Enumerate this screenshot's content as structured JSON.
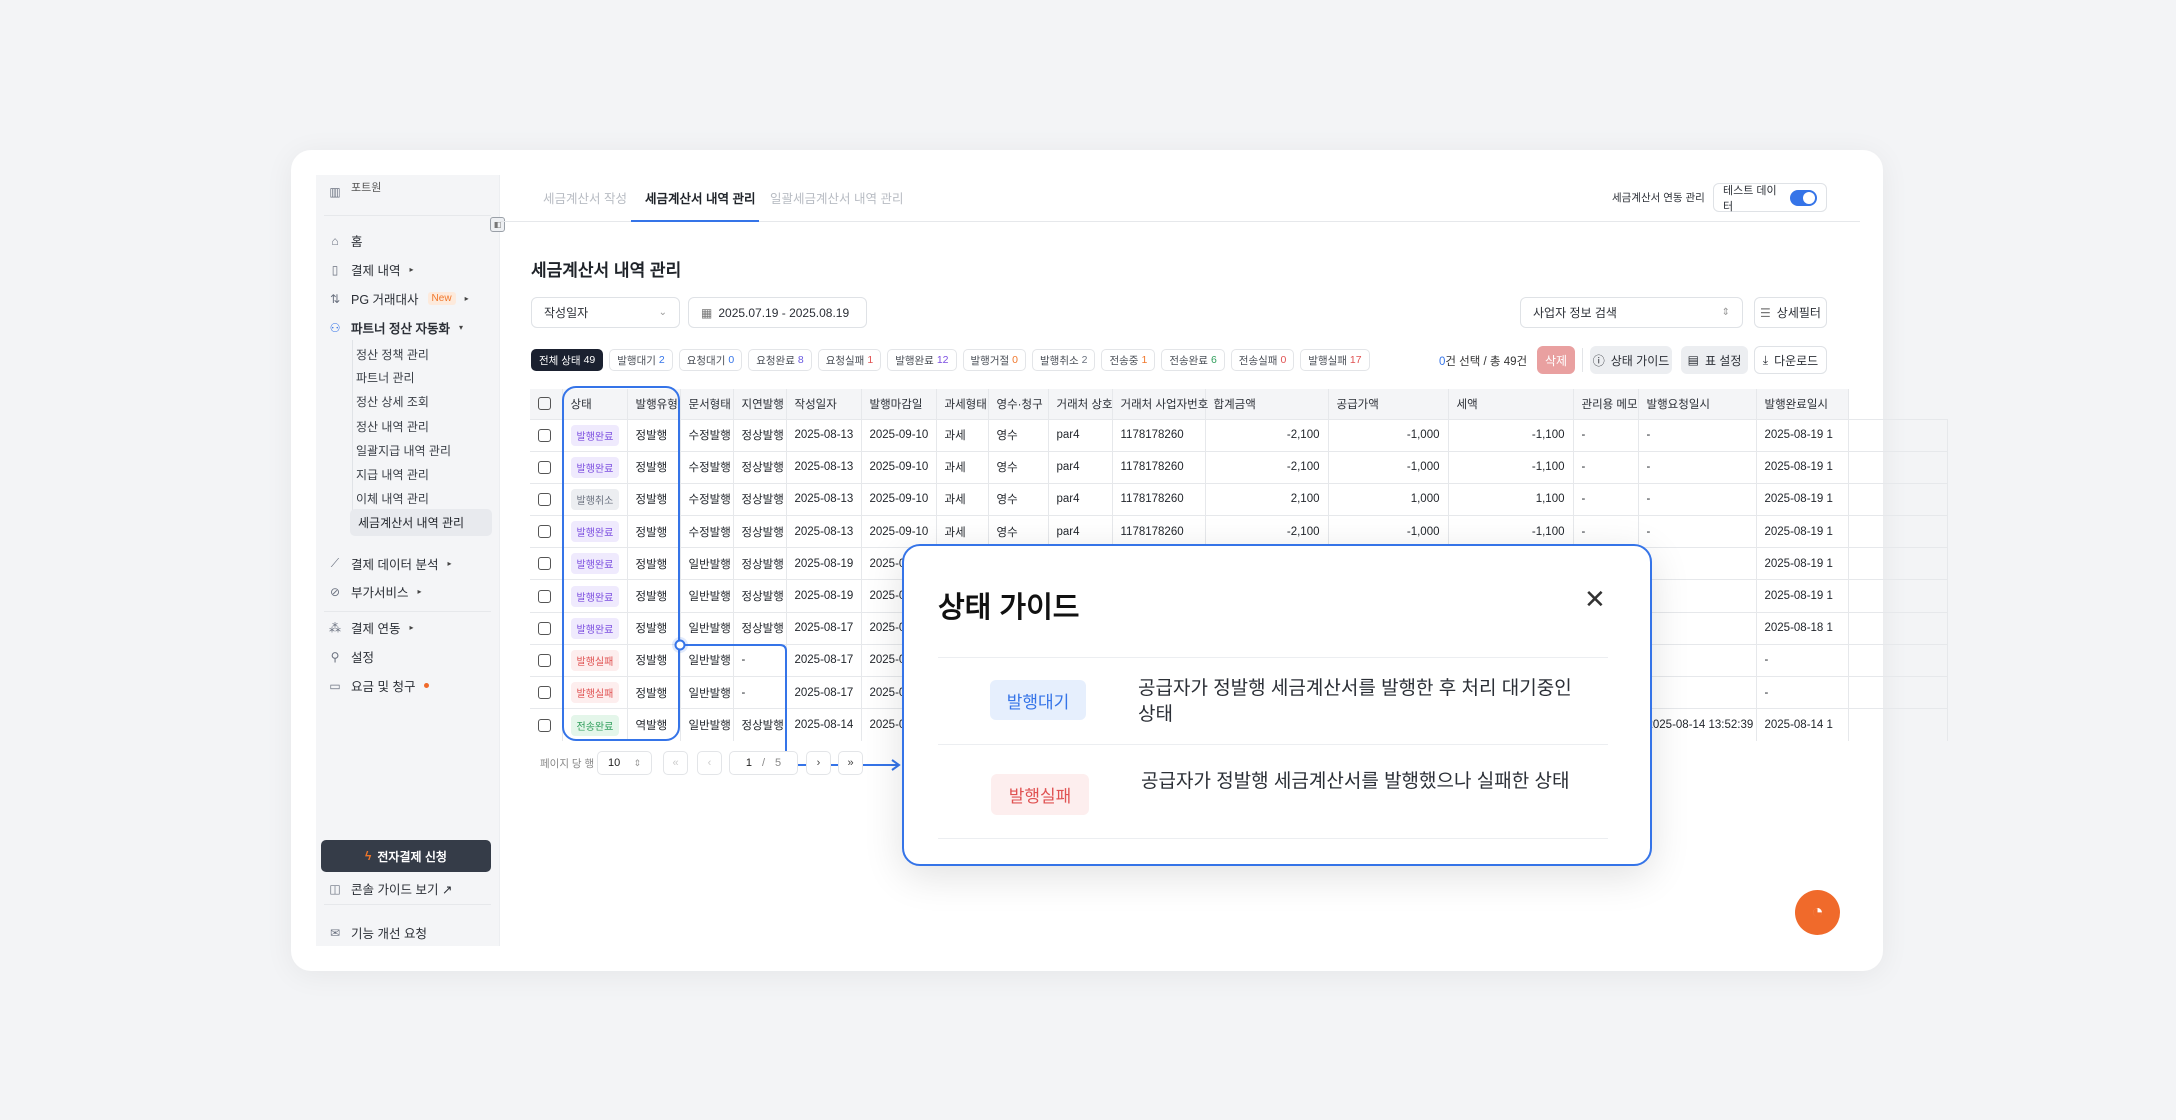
{
  "sidebar": {
    "org": "포트원",
    "items": [
      {
        "label": "홈",
        "icon": "home-icon"
      },
      {
        "label": "결제 내역",
        "icon": "clipboard-icon",
        "caret": "▸"
      },
      {
        "label": "PG 거래대사",
        "icon": "reconcile-icon",
        "badge": "New",
        "caret": "▸"
      },
      {
        "label": "파트너 정산 자동화",
        "icon": "users-icon",
        "caret": "▾"
      }
    ],
    "sub_items": [
      "정산 정책 관리",
      "파트너 관리",
      "정산 상세 조회",
      "정산 내역 관리",
      "일괄지급 내역 관리",
      "지급 내역 관리",
      "이체 내역 관리",
      "세금계산서 내역 관리"
    ],
    "items2": [
      {
        "label": "결제 데이터 분석",
        "icon": "chart-icon",
        "caret": "▸"
      },
      {
        "label": "부가서비스",
        "icon": "addon-icon",
        "caret": "▸"
      },
      {
        "label": "결제 연동",
        "icon": "integration-icon",
        "caret": "▸"
      },
      {
        "label": "설정",
        "icon": "settings-icon"
      },
      {
        "label": "요금 및 청구",
        "icon": "card-icon"
      }
    ],
    "apply_button": "전자결제 신청",
    "console_guide": "콘솔 가이드 보기 ↗",
    "feedback": "기능 개선 요청"
  },
  "tabs": [
    "세금계산서 작성",
    "세금계산서 내역 관리",
    "일괄세금계산서 내역 관리"
  ],
  "header": {
    "integration": "세금계산서 연동 관리",
    "test_data": "테스트 데이터",
    "test_data_on": true
  },
  "page_title": "세금계산서 내역 관리",
  "filters": {
    "date_type": "작성일자",
    "date_range": "2025.07.19 - 2025.08.19",
    "search": "사업자 정보 검색",
    "detail_filter": "상세필터"
  },
  "status_chips": [
    {
      "label": "전체 상태",
      "count": "49",
      "color": "#ffffff"
    },
    {
      "label": "발행대기",
      "count": "2",
      "color": "#3574e8"
    },
    {
      "label": "요청대기",
      "count": "0",
      "color": "#3574e8"
    },
    {
      "label": "요청완료",
      "count": "8",
      "color": "#6a5ae0"
    },
    {
      "label": "요청실패",
      "count": "1",
      "color": "#e05252"
    },
    {
      "label": "발행완료",
      "count": "12",
      "color": "#7b4de0"
    },
    {
      "label": "발행거절",
      "count": "0",
      "color": "#f0772b"
    },
    {
      "label": "발행취소",
      "count": "2",
      "color": "#6b7280"
    },
    {
      "label": "전송중",
      "count": "1",
      "color": "#f0772b"
    },
    {
      "label": "전송완료",
      "count": "6",
      "color": "#2f9e5b"
    },
    {
      "label": "전송실패",
      "count": "0",
      "color": "#e05252"
    },
    {
      "label": "발행실패",
      "count": "17",
      "color": "#e05252"
    }
  ],
  "selection": {
    "selected": "0",
    "text": "건 선택 / 총 49건"
  },
  "actions": {
    "delete": "삭제",
    "status_guide": "상태 가이드",
    "table_settings": "표 설정",
    "download": "다운로드"
  },
  "table": {
    "columns": [
      "상태",
      "발행유형",
      "문서형태",
      "지연발행",
      "작성일자",
      "발행마감일",
      "과세형태",
      "영수·청구",
      "거래처 상호",
      "거래처 사업자번호",
      "합계금액",
      "공급가액",
      "세액",
      "관리용 메모",
      "발행요청일시",
      "발행완료일시"
    ],
    "rows": [
      [
        "발행완료",
        "정발행",
        "수정발행",
        "정상발행",
        "2025-08-13",
        "2025-09-10",
        "과세",
        "영수",
        "par4",
        "1178178260",
        "-2,100",
        "-1,000",
        "-1,100",
        "-",
        "-",
        "2025-08-19 1"
      ],
      [
        "발행완료",
        "정발행",
        "수정발행",
        "정상발행",
        "2025-08-13",
        "2025-09-10",
        "과세",
        "영수",
        "par4",
        "1178178260",
        "-2,100",
        "-1,000",
        "-1,100",
        "-",
        "-",
        "2025-08-19 1"
      ],
      [
        "발행취소",
        "정발행",
        "수정발행",
        "정상발행",
        "2025-08-13",
        "2025-09-10",
        "과세",
        "영수",
        "par4",
        "1178178260",
        "2,100",
        "1,000",
        "1,100",
        "-",
        "-",
        "2025-08-19 1"
      ],
      [
        "발행완료",
        "정발행",
        "수정발행",
        "정상발행",
        "2025-08-13",
        "2025-09-10",
        "과세",
        "영수",
        "par4",
        "1178178260",
        "-2,100",
        "-1,000",
        "-1,100",
        "-",
        "-",
        "2025-08-19 1"
      ],
      [
        "발행완료",
        "정발행",
        "일반발행",
        "정상발행",
        "2025-08-19",
        "2025-0",
        "",
        "",
        "",
        "",
        "",
        "",
        "",
        "",
        "",
        "2025-08-19 1"
      ],
      [
        "발행완료",
        "정발행",
        "일반발행",
        "정상발행",
        "2025-08-19",
        "2025-0",
        "",
        "",
        "",
        "",
        "",
        "",
        "",
        "",
        "",
        "2025-08-19 1"
      ],
      [
        "발행완료",
        "정발행",
        "일반발행",
        "정상발행",
        "2025-08-17",
        "2025-0",
        "",
        "",
        "",
        "",
        "",
        "",
        "",
        "",
        "",
        "2025-08-18 1"
      ],
      [
        "발행실패",
        "정발행",
        "일반발행",
        "-",
        "2025-08-17",
        "2025-0",
        "",
        "",
        "",
        "",
        "",
        "",
        "",
        "",
        "",
        "-"
      ],
      [
        "발행실패",
        "정발행",
        "일반발행",
        "-",
        "2025-08-17",
        "2025-0",
        "",
        "",
        "",
        "",
        "",
        "",
        "",
        "",
        "",
        "-"
      ],
      [
        "전송완료",
        "역발행",
        "일반발행",
        "정상발행",
        "2025-08-14",
        "2025-0",
        "",
        "",
        "",
        "",
        "",
        "",
        "",
        "",
        "2025-08-14 13:52:39",
        "2025-08-14 1"
      ]
    ],
    "status_colors": {
      "발행완료": {
        "fg": "#7b4de0",
        "bg": "#efeafd"
      },
      "발행취소": {
        "fg": "#6b7280",
        "bg": "#eceef1"
      },
      "발행실패": {
        "fg": "#e05252",
        "bg": "#fdeeee"
      },
      "전송완료": {
        "fg": "#2f9e5b",
        "bg": "#e4f6ea"
      }
    }
  },
  "pagination": {
    "rows_label": "페이지 당 행",
    "rows_per_page": "10",
    "page": "1",
    "sep": "/",
    "total_pages": "5"
  },
  "guide": {
    "title": "상태 가이드",
    "items": [
      {
        "badge": "발행대기",
        "fg": "#3574e8",
        "bg": "#e6effd",
        "text": "공급자가 정발행 세금계산서를 발행한 후 처리 대기중인 상태"
      },
      {
        "badge": "발행실패",
        "fg": "#e05252",
        "bg": "#fdeeee",
        "text": "공급자가 정발행 세금계산서를 발행했으나 실패한 상태"
      }
    ]
  },
  "accent": "#3574e8"
}
